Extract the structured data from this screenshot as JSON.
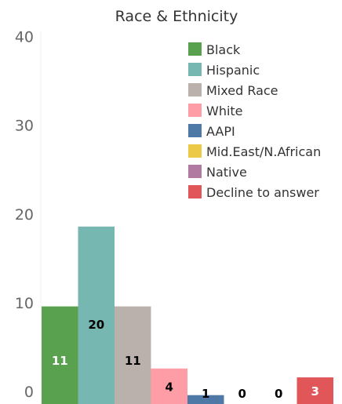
{
  "chart_data": {
    "type": "bar",
    "title": "Race & Ethnicity",
    "xlabel": "",
    "ylabel": "",
    "ylim": [
      0,
      42
    ],
    "yticks": [
      0,
      10,
      20,
      30,
      40
    ],
    "grid": false,
    "legend_position": "top-right",
    "categories": [
      "Black",
      "Hispanic",
      "Mixed Race",
      "White",
      "AAPI",
      "Mid.East/N.African",
      "Native",
      "Decline to answer"
    ],
    "values": [
      11,
      20,
      11,
      4,
      1,
      0,
      0,
      3
    ],
    "colors": [
      "#59a14f",
      "#76b7b2",
      "#bab0ac",
      "#ff9da7",
      "#4e79a7",
      "#edc948",
      "#b07aa1",
      "#e15759"
    ],
    "label_colors": [
      "#ffffff",
      "#000000",
      "#000000",
      "#000000",
      "#000000",
      "#000000",
      "#000000",
      "#ffffff"
    ]
  }
}
